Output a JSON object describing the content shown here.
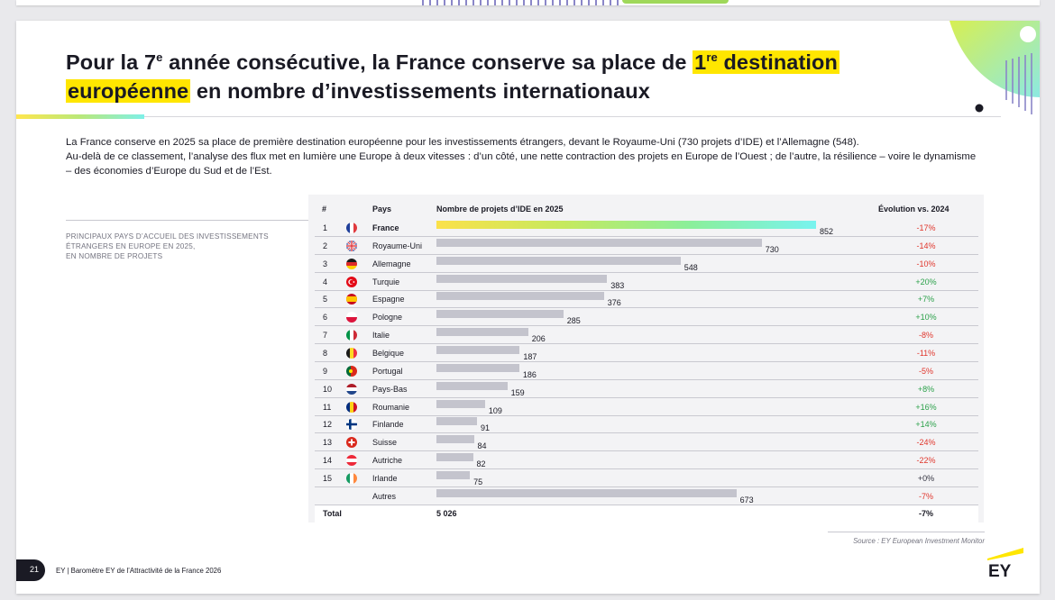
{
  "title": {
    "part1": "Pour la 7",
    "sup1": "e",
    "part2": " année consécutive, la France conserve sa place de ",
    "hl1_main": "1",
    "hl1_sup": "re",
    "hl1_rest": " destination",
    "line2_hl": "européenne",
    "line2_rest": " en nombre d’investissements internationaux"
  },
  "intro": {
    "p1": "La France conserve en 2025 sa place de première destination européenne pour les investissements étrangers, devant le Royaume-Uni (730 projets d’IDE) et l’Allemagne (548).",
    "p2": "Au-delà de ce classement, l’analyse des flux met en lumière une Europe à deux vitesses : d’un côté, une nette contraction des projets en Europe de l’Ouest ; de l’autre, la résilience – voire le dynamisme – des économies d’Europe du Sud et de l’Est."
  },
  "side_caption": [
    "PRINCIPAUX PAYS D’ACCUEIL DES INVESTISSEMENTS",
    "ÉTRANGERS EN EUROPE EN 2025,",
    "EN NOMBRE DE PROJETS"
  ],
  "table": {
    "headers": {
      "rank": "#",
      "country": "Pays",
      "projects": "Nombre de projets d’IDE en 2025",
      "evolution": "Évolution vs. 2024"
    },
    "total": {
      "label": "Total",
      "value": "5 026",
      "evolution": "-7%"
    }
  },
  "chart_data": {
    "type": "bar",
    "orientation": "horizontal",
    "categories": [
      "France",
      "Royaume-Uni",
      "Allemagne",
      "Turquie",
      "Espagne",
      "Pologne",
      "Italie",
      "Belgique",
      "Portugal",
      "Pays-Bas",
      "Roumanie",
      "Finlande",
      "Suisse",
      "Autriche",
      "Irlande",
      "Autres"
    ],
    "ranks": [
      "1",
      "2",
      "3",
      "4",
      "5",
      "6",
      "7",
      "8",
      "9",
      "10",
      "11",
      "12",
      "13",
      "14",
      "15",
      ""
    ],
    "values": [
      852,
      730,
      548,
      383,
      376,
      285,
      206,
      187,
      186,
      159,
      109,
      91,
      84,
      82,
      75,
      673
    ],
    "evolution": [
      "-17%",
      "-14%",
      "-10%",
      "+20%",
      "+7%",
      "+10%",
      "-8%",
      "-11%",
      "-5%",
      "+8%",
      "+16%",
      "+14%",
      "-24%",
      "-22%",
      "+0%",
      "-7%"
    ],
    "flags": [
      "fr",
      "gb",
      "de",
      "tr",
      "es",
      "pl",
      "it",
      "be",
      "pt",
      "nl",
      "ro",
      "fi",
      "ch",
      "at",
      "ie",
      ""
    ],
    "colors": {
      "highlight_gradient": [
        "#fbe14a",
        "#78f3ef"
      ],
      "bar": "#c4c4cd",
      "negative": "#e0362c",
      "positive": "#2ba14a"
    }
  },
  "source": "Source : EY European Investment Monitor",
  "footer": {
    "page": "21",
    "text": "EY | Baromètre EY de l’Attractivité de la France 2026"
  },
  "logo": {
    "text": "EY",
    "accent": "#ffe600"
  }
}
